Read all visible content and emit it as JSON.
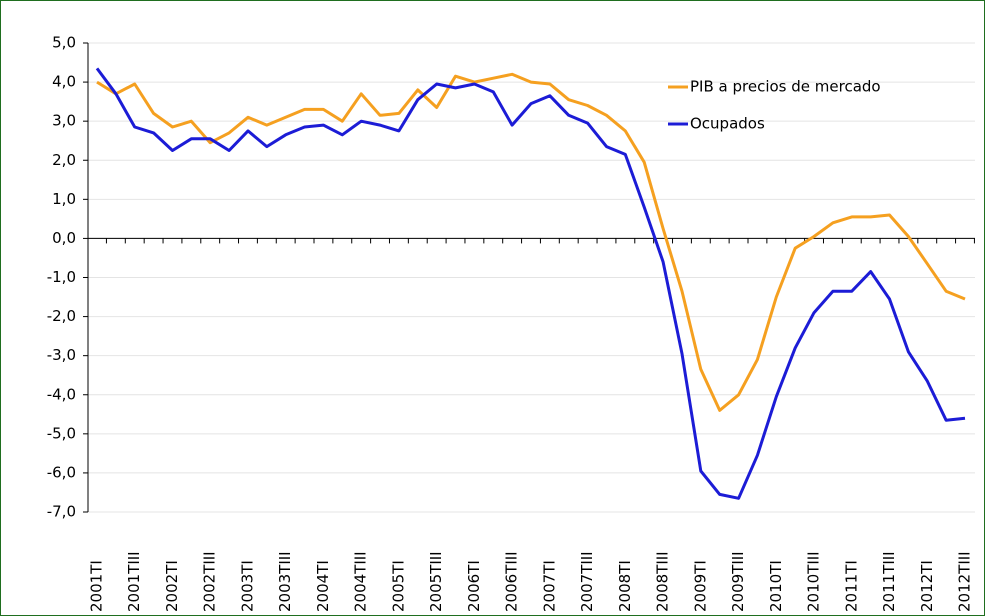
{
  "chart_data": {
    "type": "line",
    "categories": [
      "2001TI",
      null,
      "2001TIII",
      null,
      "2002TI",
      null,
      "2002TIII",
      null,
      "2003TI",
      null,
      "2003TIII",
      null,
      "2004TI",
      null,
      "2004TIII",
      null,
      "2005TI",
      null,
      "2005TIII",
      null,
      "2006TI",
      null,
      "2006TIII",
      null,
      "2007TI",
      null,
      "2007TIII",
      null,
      "2008TI",
      null,
      "2008TIII",
      null,
      "2009TI",
      null,
      "2009TIII",
      null,
      "2010TI",
      null,
      "2010TIII",
      null,
      "2011TI",
      null,
      "2011TIII",
      null,
      "2012TI",
      null,
      "2012TIII"
    ],
    "series": [
      {
        "name": "PIB a precios de mercado",
        "color": "#f5a020",
        "values": [
          4.0,
          3.7,
          3.95,
          3.2,
          2.85,
          3.0,
          2.45,
          2.7,
          3.1,
          2.9,
          3.1,
          3.3,
          3.3,
          3.0,
          3.7,
          3.15,
          3.2,
          3.8,
          3.35,
          4.15,
          4.0,
          4.1,
          4.2,
          4.0,
          3.95,
          3.55,
          3.4,
          3.15,
          2.75,
          1.95,
          0.25,
          -1.35,
          -3.35,
          -4.4,
          -4.0,
          -3.1,
          -1.5,
          -0.25,
          0.05,
          0.4,
          0.55,
          0.55,
          0.6,
          0.05,
          -0.65,
          -1.35,
          -1.55
        ]
      },
      {
        "name": "Ocupados",
        "color": "#1c1cd6",
        "values": [
          4.35,
          3.7,
          2.85,
          2.7,
          2.25,
          2.55,
          2.55,
          2.25,
          2.75,
          2.35,
          2.65,
          2.85,
          2.9,
          2.65,
          3.0,
          2.9,
          2.75,
          3.55,
          3.95,
          3.85,
          3.95,
          3.75,
          2.9,
          3.45,
          3.65,
          3.15,
          2.95,
          2.35,
          2.15,
          0.8,
          -0.6,
          -2.95,
          -5.95,
          -6.55,
          -6.65,
          -5.55,
          -4.05,
          -2.8,
          -1.9,
          -1.35,
          -1.35,
          -0.85,
          -1.55,
          -2.9,
          -3.65,
          -4.65,
          -4.6
        ]
      }
    ],
    "ylim": [
      -7,
      5
    ],
    "yticks": [
      {
        "value": -7,
        "label": "-7,0"
      },
      {
        "value": -6,
        "label": "-6,0"
      },
      {
        "value": -5,
        "label": "-5,0"
      },
      {
        "value": -4,
        "label": "-4,0"
      },
      {
        "value": -3,
        "label": "-3,0"
      },
      {
        "value": -2,
        "label": "-2,0"
      },
      {
        "value": -1,
        "label": "-1,0"
      },
      {
        "value": 0,
        "label": "0,0"
      },
      {
        "value": 1,
        "label": "1,0"
      },
      {
        "value": 2,
        "label": "2,0"
      },
      {
        "value": 3,
        "label": "3,0"
      },
      {
        "value": 4,
        "label": "4,0"
      },
      {
        "value": 5,
        "label": "5,0"
      }
    ],
    "grid": true,
    "legend": "upper right"
  }
}
